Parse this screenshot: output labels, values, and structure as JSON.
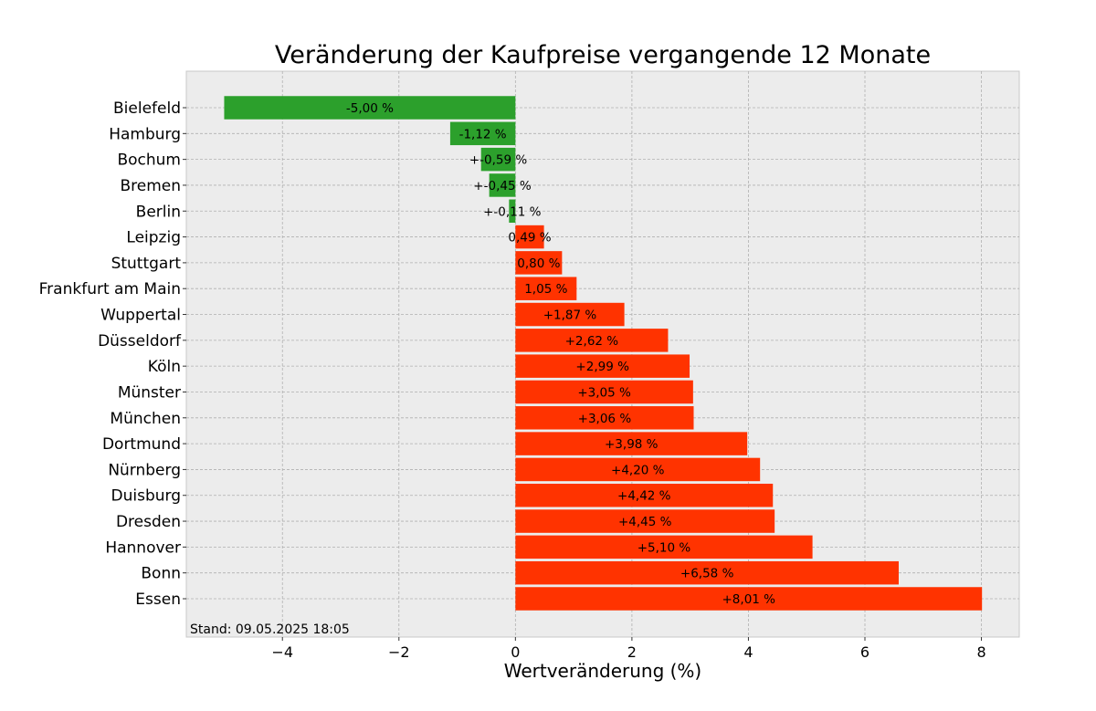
{
  "chart_data": {
    "type": "bar",
    "orientation": "horizontal",
    "title": "Veränderung der Kaufpreise vergangende 12 Monate",
    "xlabel": "Wertveränderung (%)",
    "ylabel": "",
    "xlim": [
      -5.65,
      8.65
    ],
    "xticks": [
      -4,
      -2,
      0,
      2,
      4,
      6,
      8
    ],
    "xtick_labels": [
      "−4",
      "−2",
      "0",
      "2",
      "4",
      "6",
      "8"
    ],
    "grid": true,
    "categories": [
      "Bielefeld",
      "Hamburg",
      "Bochum",
      "Bremen",
      "Berlin",
      "Leipzig",
      "Stuttgart",
      "Frankfurt am Main",
      "Wuppertal",
      "Düsseldorf",
      "Köln",
      "Münster",
      "München",
      "Dortmund",
      "Nürnberg",
      "Duisburg",
      "Dresden",
      "Hannover",
      "Bonn",
      "Essen"
    ],
    "values": [
      -5.0,
      -1.12,
      -0.59,
      -0.45,
      -0.11,
      0.49,
      0.8,
      1.05,
      1.87,
      2.62,
      2.99,
      3.05,
      3.06,
      3.98,
      4.2,
      4.42,
      4.45,
      5.1,
      6.58,
      8.01
    ],
    "data_labels": [
      "-5,00 %",
      "-1,12 %",
      "+-0,59 %",
      "+-0,45 %",
      "+-0,11 %",
      "0,49 %",
      "0,80 %",
      "1,05 %",
      "+1,87 %",
      "+2,62 %",
      "+2,99 %",
      "+3,05 %",
      "+3,06 %",
      "+3,98 %",
      "+4,20 %",
      "+4,42 %",
      "+4,45 %",
      "+5,10 %",
      "+6,58 %",
      "+8,01 %"
    ],
    "colors": {
      "negative": "#2ca02c",
      "positive": "#ff3300",
      "background": "#ececec",
      "grid": "#b0b0b0"
    },
    "annotation": "Stand: 09.05.2025 18:05"
  }
}
